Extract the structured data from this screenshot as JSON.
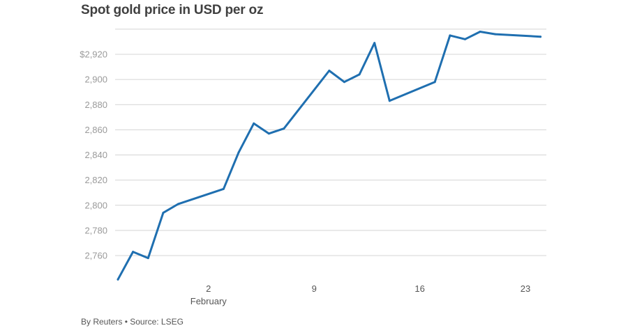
{
  "chart_data": {
    "type": "line",
    "title": "Spot gold price in USD per oz",
    "source": "By Reuters • Source: LSEG",
    "y_axis": {
      "ylim": [
        2740,
        2950
      ],
      "ticks": [
        2760,
        2780,
        2800,
        2820,
        2840,
        2860,
        2880,
        2900,
        2920
      ],
      "tick_labels": [
        "2,760",
        "2,780",
        "2,800",
        "2,820",
        "2,840",
        "2,860",
        "2,880",
        "2,900",
        "$2,920"
      ]
    },
    "x_axis": {
      "ticks": [
        {
          "date": "2025-02-02",
          "label": "2",
          "sublabel": "February"
        },
        {
          "date": "2025-02-09",
          "label": "9",
          "sublabel": ""
        },
        {
          "date": "2025-02-16",
          "label": "16",
          "sublabel": ""
        },
        {
          "date": "2025-02-23",
          "label": "23",
          "sublabel": ""
        }
      ]
    },
    "grid": true,
    "series": [
      {
        "color": "#1f6fb0",
        "points": [
          {
            "x": "2025-01-27",
            "y": 2741
          },
          {
            "x": "2025-01-28",
            "y": 2763
          },
          {
            "x": "2025-01-29",
            "y": 2758
          },
          {
            "x": "2025-01-30",
            "y": 2794
          },
          {
            "x": "2025-01-31",
            "y": 2801
          },
          {
            "x": "2025-02-03",
            "y": 2813
          },
          {
            "x": "2025-02-04",
            "y": 2842
          },
          {
            "x": "2025-02-05",
            "y": 2865
          },
          {
            "x": "2025-02-06",
            "y": 2857
          },
          {
            "x": "2025-02-07",
            "y": 2861
          },
          {
            "x": "2025-02-10",
            "y": 2907
          },
          {
            "x": "2025-02-11",
            "y": 2898
          },
          {
            "x": "2025-02-12",
            "y": 2904
          },
          {
            "x": "2025-02-13",
            "y": 2929
          },
          {
            "x": "2025-02-14",
            "y": 2883
          },
          {
            "x": "2025-02-17",
            "y": 2898
          },
          {
            "x": "2025-02-18",
            "y": 2935
          },
          {
            "x": "2025-02-19",
            "y": 2932
          },
          {
            "x": "2025-02-20",
            "y": 2938
          },
          {
            "x": "2025-02-21",
            "y": 2936
          },
          {
            "x": "2025-02-24",
            "y": 2934
          }
        ]
      }
    ]
  }
}
